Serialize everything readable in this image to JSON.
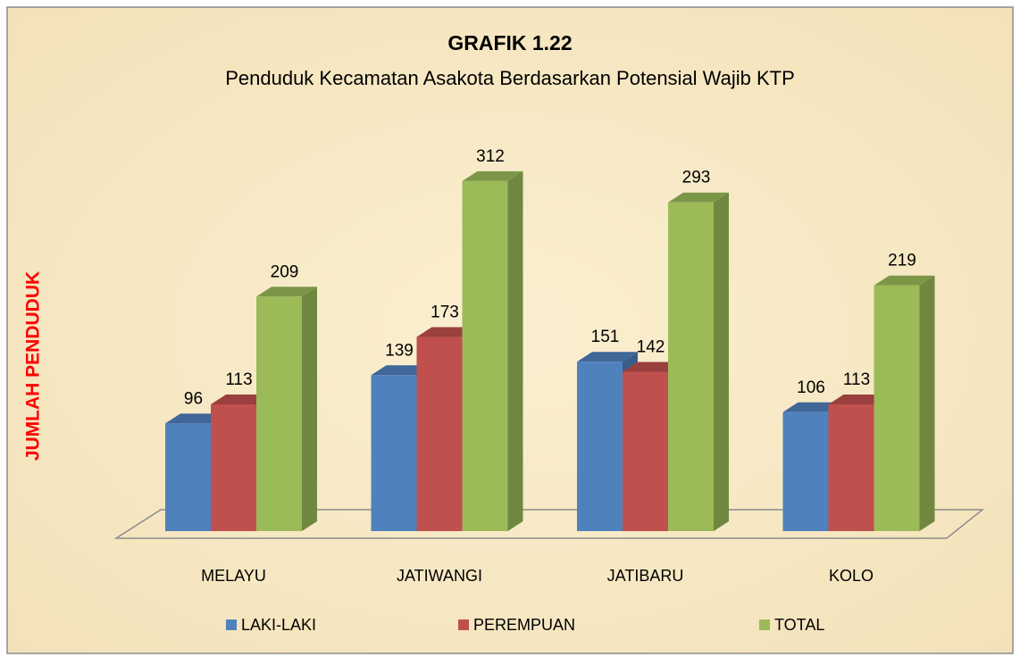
{
  "chart_data": {
    "type": "bar3d",
    "title": "GRAFIK 1.22",
    "subtitle": "Penduduk Kecamatan  Asakota Berdasarkan Potensial Wajib KTP",
    "y_label": "JUMLAH PENDUDUK",
    "categories": [
      "MELAYU",
      "JATIWANGI",
      "JATIBARU",
      "KOLO"
    ],
    "series": [
      {
        "name": "LAKI-LAKI",
        "color": "#4f81bd",
        "values": [
          96,
          139,
          151,
          106
        ]
      },
      {
        "name": "PEREMPUAN",
        "color": "#c0504d",
        "values": [
          113,
          173,
          142,
          113
        ]
      },
      {
        "name": "TOTAL",
        "color": "#9bbb59",
        "values": [
          209,
          312,
          293,
          219
        ]
      }
    ],
    "legend": "bottom"
  }
}
